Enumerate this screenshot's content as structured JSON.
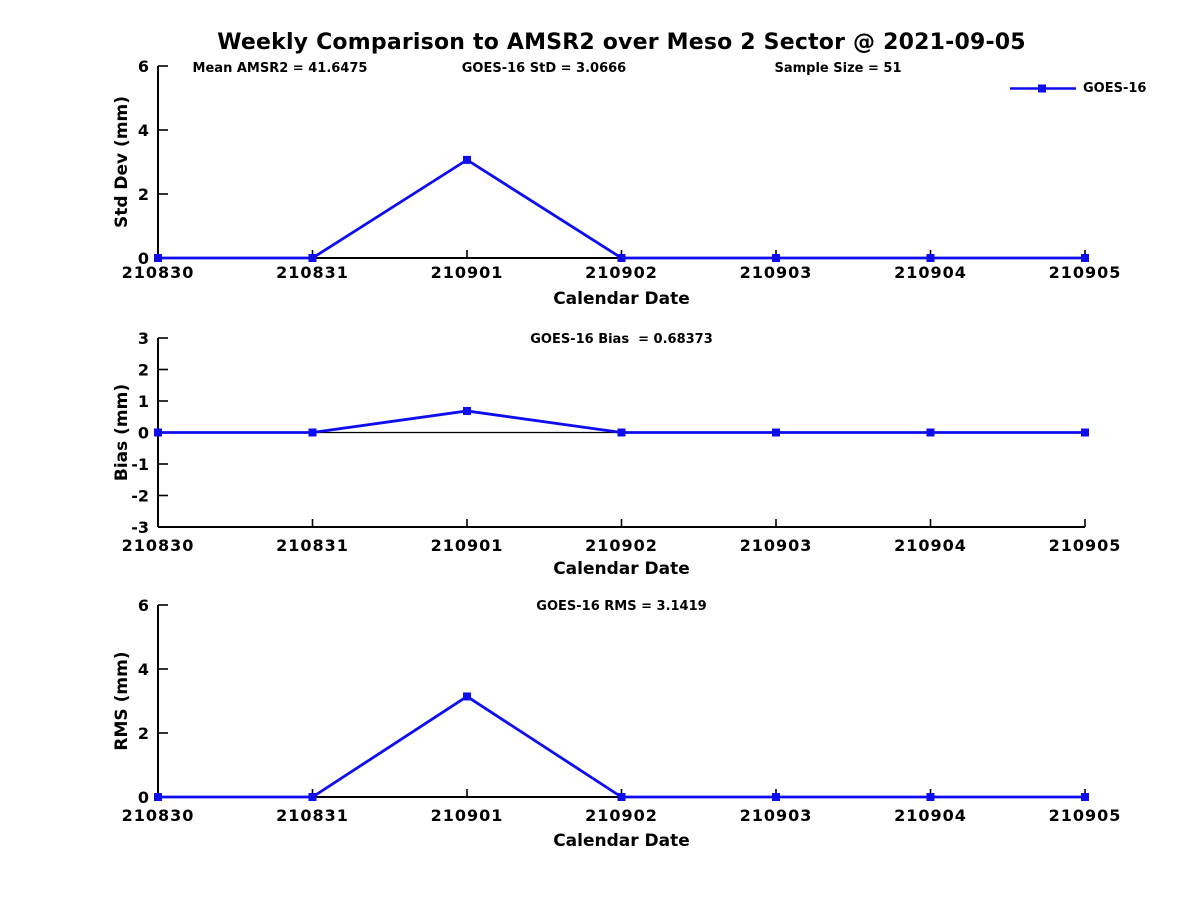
{
  "header": {
    "title": "Weekly Comparison to AMSR2 over Meso 2 Sector @ 2021-09-05",
    "stats": [
      {
        "label": "Mean AMSR2 = 41.6475"
      },
      {
        "label": "GOES-16 StD = 3.0666"
      },
      {
        "label": "Sample Size = 51"
      }
    ]
  },
  "legend": {
    "label": "GOES-16",
    "color": "#0d0dee",
    "marker": "square"
  },
  "colors": {
    "line": "#0d0dee",
    "axis": "#000000",
    "text": "#000000",
    "background": "#ffffff"
  },
  "chart_data": [
    {
      "type": "line",
      "title": "",
      "ylabel": "Std Dev (mm)",
      "xlabel": "Calendar Date",
      "categories": [
        "210830",
        "210831",
        "210901",
        "210902",
        "210903",
        "210904",
        "210905"
      ],
      "series": [
        {
          "name": "GOES-16",
          "values": [
            0,
            0,
            3.0666,
            0,
            0,
            0,
            0
          ]
        }
      ],
      "ylim": [
        0,
        6
      ],
      "yticks": [
        0,
        2,
        4,
        6
      ],
      "zero_line": false,
      "grid": false,
      "legend_position": "top-right"
    },
    {
      "type": "line",
      "title": "GOES-16 Bias  = 0.68373",
      "ylabel": "Bias (mm)",
      "xlabel": "Calendar Date",
      "categories": [
        "210830",
        "210831",
        "210901",
        "210902",
        "210903",
        "210904",
        "210905"
      ],
      "series": [
        {
          "name": "GOES-16",
          "values": [
            0,
            0,
            0.68373,
            0,
            0,
            0,
            0
          ]
        }
      ],
      "ylim": [
        -3,
        3
      ],
      "yticks": [
        -3,
        -2,
        -1,
        0,
        1,
        2,
        3
      ],
      "zero_line": true,
      "grid": false,
      "legend_position": "none"
    },
    {
      "type": "line",
      "title": "GOES-16 RMS = 3.1419",
      "ylabel": "RMS (mm)",
      "xlabel": "Calendar Date",
      "categories": [
        "210830",
        "210831",
        "210901",
        "210902",
        "210903",
        "210904",
        "210905"
      ],
      "series": [
        {
          "name": "GOES-16",
          "values": [
            0,
            0,
            3.1419,
            0,
            0,
            0,
            0
          ]
        }
      ],
      "ylim": [
        0,
        6
      ],
      "yticks": [
        0,
        2,
        4,
        6
      ],
      "zero_line": false,
      "grid": false,
      "legend_position": "none"
    }
  ]
}
